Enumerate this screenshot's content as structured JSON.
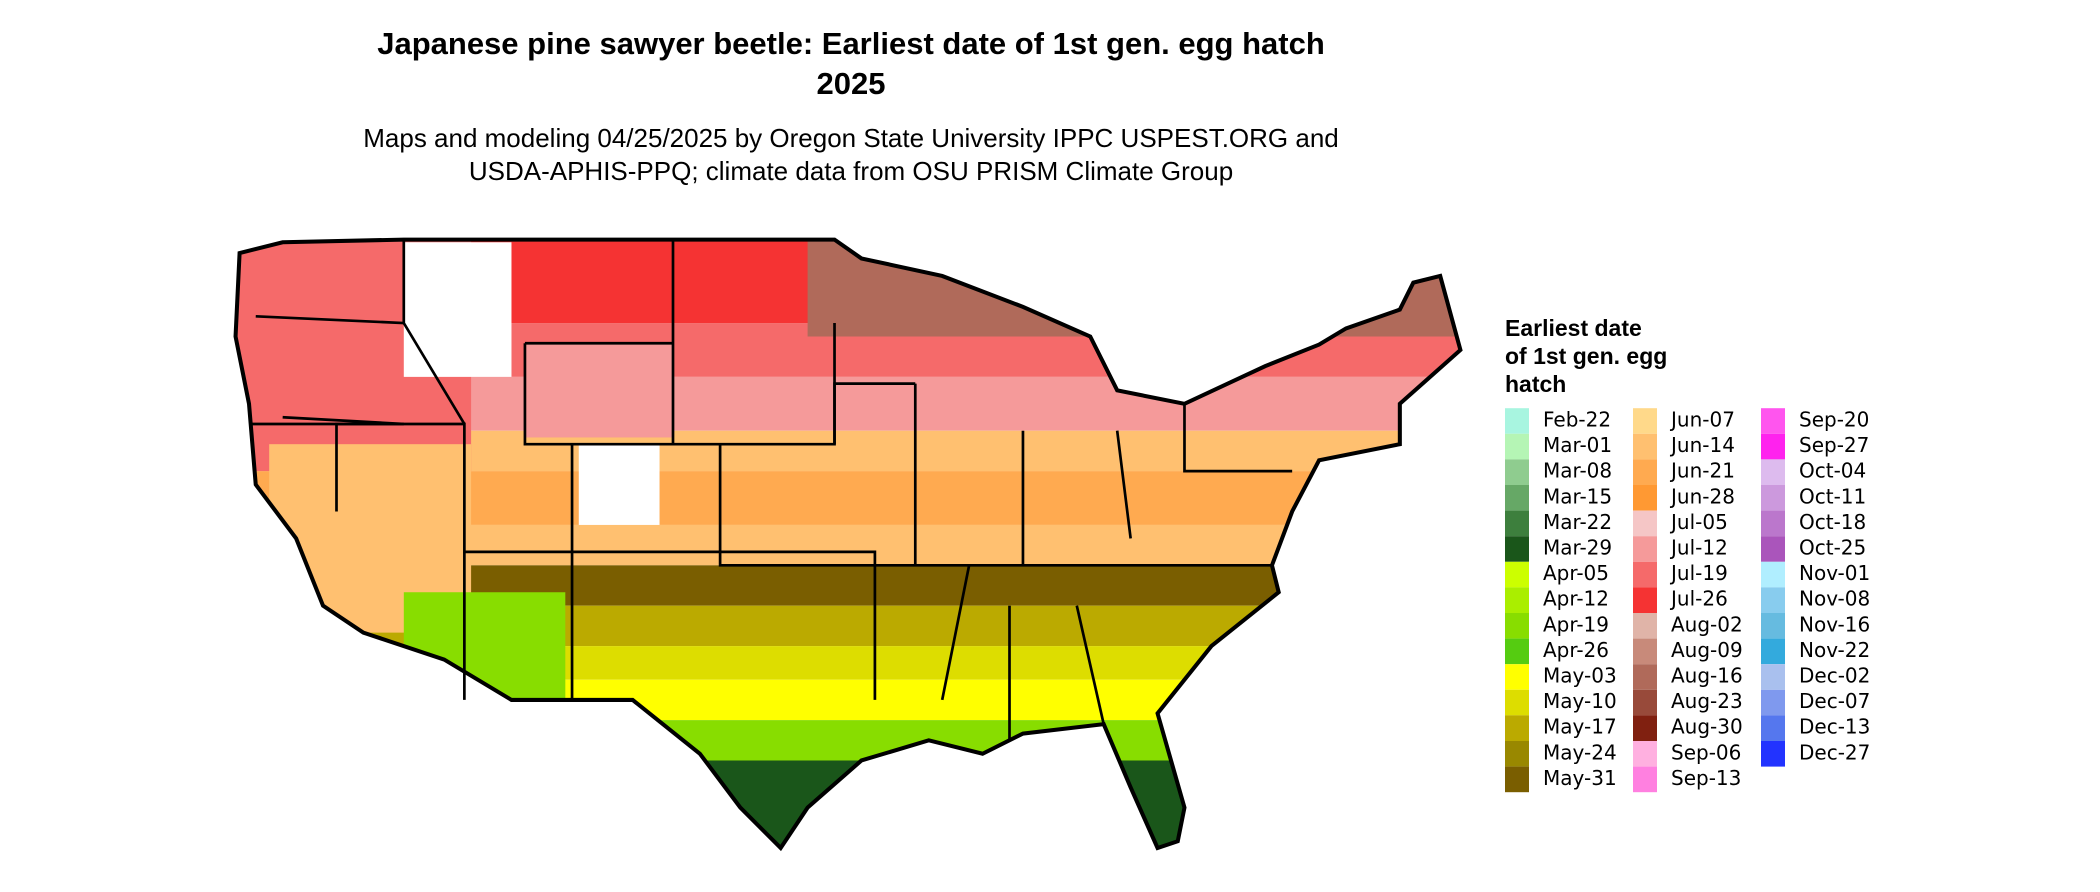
{
  "header": {
    "title": [
      "Japanese pine sawyer beetle: Earliest date of 1st gen. egg hatch",
      "2025"
    ],
    "subtitle": [
      "Maps and modeling 04/25/2025 by Oregon State University IPPC USPEST.ORG and",
      "USDA-APHIS-PPQ; climate data from OSU PRISM Climate Group"
    ]
  },
  "legend": {
    "title": [
      "Earliest date",
      "of 1st gen. egg",
      "hatch"
    ],
    "items": [
      {
        "label": "Feb-22",
        "color": "#a8f5e0"
      },
      {
        "label": "Mar-01",
        "color": "#b5f5b5"
      },
      {
        "label": "Mar-08",
        "color": "#8fcc8f"
      },
      {
        "label": "Mar-15",
        "color": "#66a866"
      },
      {
        "label": "Mar-22",
        "color": "#3d7f3d"
      },
      {
        "label": "Mar-29",
        "color": "#1a561a"
      },
      {
        "label": "Apr-05",
        "color": "#ccff00"
      },
      {
        "label": "Apr-12",
        "color": "#aaee00"
      },
      {
        "label": "Apr-19",
        "color": "#88dd00"
      },
      {
        "label": "Apr-26",
        "color": "#55cc11"
      },
      {
        "label": "May-03",
        "color": "#ffff00"
      },
      {
        "label": "May-10",
        "color": "#dddd00"
      },
      {
        "label": "May-17",
        "color": "#bbaa00"
      },
      {
        "label": "May-24",
        "color": "#998800"
      },
      {
        "label": "May-31",
        "color": "#7a5e00"
      },
      {
        "label": "Jun-07",
        "color": "#ffd98a"
      },
      {
        "label": "Jun-14",
        "color": "#ffc070"
      },
      {
        "label": "Jun-21",
        "color": "#ffaa50"
      },
      {
        "label": "Jun-28",
        "color": "#ff9933"
      },
      {
        "label": "Jul-05",
        "color": "#f5c6c6"
      },
      {
        "label": "Jul-12",
        "color": "#f59a9a"
      },
      {
        "label": "Jul-19",
        "color": "#f56a6a"
      },
      {
        "label": "Jul-26",
        "color": "#f53333"
      },
      {
        "label": "Aug-02",
        "color": "#e0b4a8"
      },
      {
        "label": "Aug-09",
        "color": "#c88a7a"
      },
      {
        "label": "Aug-16",
        "color": "#b06a5a"
      },
      {
        "label": "Aug-23",
        "color": "#984a3a"
      },
      {
        "label": "Aug-30",
        "color": "#802010"
      },
      {
        "label": "Sep-06",
        "color": "#ffb0e0"
      },
      {
        "label": "Sep-13",
        "color": "#ff80e0"
      },
      {
        "label": "Sep-20",
        "color": "#ff55ee"
      },
      {
        "label": "Sep-27",
        "color": "#ff22ee"
      },
      {
        "label": "Oct-04",
        "color": "#ddbbee"
      },
      {
        "label": "Oct-11",
        "color": "#cc99dd"
      },
      {
        "label": "Oct-18",
        "color": "#bb77cc"
      },
      {
        "label": "Oct-25",
        "color": "#aa55bb"
      },
      {
        "label": "Nov-01",
        "color": "#b0eeff"
      },
      {
        "label": "Nov-08",
        "color": "#88ccee"
      },
      {
        "label": "Nov-16",
        "color": "#66bbe0"
      },
      {
        "label": "Nov-22",
        "color": "#33aadd"
      },
      {
        "label": "Dec-02",
        "color": "#a9c0ee"
      },
      {
        "label": "Dec-07",
        "color": "#7f99ee"
      },
      {
        "label": "Dec-13",
        "color": "#5577ee"
      },
      {
        "label": "Dec-27",
        "color": "#2233ff"
      }
    ]
  }
}
